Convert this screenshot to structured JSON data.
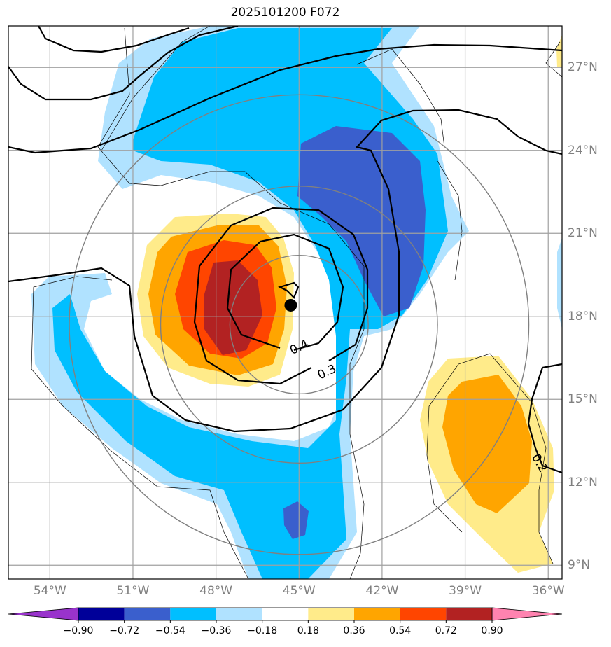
{
  "title": "2025101200 F072",
  "map": {
    "lon_range": [
      -55.5,
      -35.5
    ],
    "lat_range": [
      8.5,
      28.5
    ],
    "lon_ticks": [
      {
        "value": -54,
        "label": "54°W"
      },
      {
        "value": -51,
        "label": "51°W"
      },
      {
        "value": -48,
        "label": "48°W"
      },
      {
        "value": -45,
        "label": "45°W"
      },
      {
        "value": -42,
        "label": "42°W"
      },
      {
        "value": -39,
        "label": "39°W"
      },
      {
        "value": -36,
        "label": "36°W"
      }
    ],
    "lat_ticks": [
      {
        "value": 9,
        "label": "9°N"
      },
      {
        "value": 12,
        "label": "12°N"
      },
      {
        "value": 15,
        "label": "15°N"
      },
      {
        "value": 18,
        "label": "18°N"
      },
      {
        "value": 21,
        "label": "21°N"
      },
      {
        "value": 24,
        "label": "24°N"
      },
      {
        "value": 27,
        "label": "27°N"
      }
    ],
    "storm_center": {
      "lon": -45.3,
      "lat": 18.4
    },
    "range_rings": {
      "center": {
        "lon": -45.0,
        "lat": 17.7
      },
      "radii_deg": [
        2.5,
        5.0,
        8.3
      ]
    },
    "contour_labels": [
      {
        "text": "0.4",
        "lon": -45.0,
        "lat": 16.9
      },
      {
        "text": "0.3",
        "lon": -44.0,
        "lat": 16.0
      },
      {
        "text": "0.2",
        "lon": -36.3,
        "lat": 12.7
      }
    ],
    "shading_colors": [
      "#9933cc",
      "#000099",
      "#3a5fcd",
      "#00bfff",
      "#b0e2ff",
      "#ffffff",
      "#ffeb8a",
      "#ffa500",
      "#ff4500",
      "#b22222",
      "#ff83b0"
    ]
  },
  "colorbar": {
    "levels": [
      "−0.90",
      "−0.72",
      "−0.54",
      "−0.36",
      "−0.18",
      "0.18",
      "0.36",
      "0.54",
      "0.72",
      "0.90"
    ],
    "colors": [
      "#9933cc",
      "#000099",
      "#3a5fcd",
      "#00bfff",
      "#b0e2ff",
      "#ffffff",
      "#ffeb8a",
      "#ffa500",
      "#ff4500",
      "#b22222",
      "#ff83b0"
    ]
  }
}
